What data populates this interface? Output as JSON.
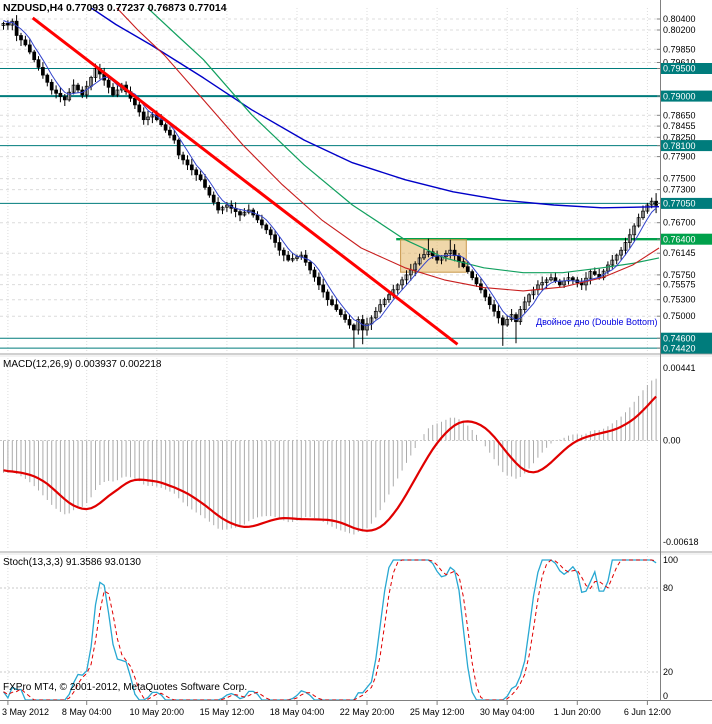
{
  "app": {
    "platform_title": "FXPro MT4",
    "copyright": "FXPro MT4, © 2001-2012, MetaQuotes Software Corp."
  },
  "main_panel": {
    "title": "NZDUSD,H4 0.77093 0.77237 0.76873 0.77014",
    "symbol": "NZDUSD",
    "timeframe": "H4",
    "open": "0.77093",
    "high": "0.77237",
    "low": "0.76873",
    "close": "0.77014",
    "annotation_text": "Двойное дно (Double Bottom)"
  },
  "macd_panel": {
    "title": "MACD(12,26,9) 0.003937 0.002218",
    "indicator": "MACD",
    "params": "12,26,9",
    "main_value": "0.003937",
    "signal_value": "0.002218"
  },
  "stoch_panel": {
    "title": "Stoch(13,3,3) 91.3586 93.0130",
    "indicator": "Stochastic",
    "params": "13,3,3",
    "main_value": "91.3586",
    "signal_value": "93.0130"
  },
  "chart_data": {
    "type": "candlestick",
    "symbol": "NZDUSD",
    "timeframe": "H4",
    "price_axis": {
      "max": 0.806,
      "min": 0.7435,
      "labels": [
        {
          "text": "0.80400",
          "v": 0.804,
          "type": "grid"
        },
        {
          "text": "0.80200",
          "v": 0.802,
          "type": "grid"
        },
        {
          "text": "0.79850",
          "v": 0.7985,
          "type": "grid"
        },
        {
          "text": "0.79610",
          "v": 0.7961,
          "type": "grid"
        },
        {
          "text": "0.79500",
          "v": 0.795,
          "type": "teal"
        },
        {
          "text": "0.79000",
          "v": 0.79,
          "type": "teal"
        },
        {
          "text": "0.78650",
          "v": 0.7865,
          "type": "grid"
        },
        {
          "text": "0.78455",
          "v": 0.78455,
          "type": "grid"
        },
        {
          "text": "0.78250",
          "v": 0.7825,
          "type": "grid"
        },
        {
          "text": "0.78100",
          "v": 0.781,
          "type": "teal"
        },
        {
          "text": "0.77900",
          "v": 0.779,
          "type": "grid"
        },
        {
          "text": "0.77500",
          "v": 0.775,
          "type": "grid"
        },
        {
          "text": "0.77300",
          "v": 0.773,
          "type": "grid"
        },
        {
          "text": "0.77050",
          "v": 0.7705,
          "type": "teal"
        },
        {
          "text": "0.76700",
          "v": 0.767,
          "type": "grid"
        },
        {
          "text": "0.76400",
          "v": 0.764,
          "type": "green"
        },
        {
          "text": "0.76145",
          "v": 0.76145,
          "type": "grid"
        },
        {
          "text": "0.75750",
          "v": 0.7575,
          "type": "grid"
        },
        {
          "text": "0.75575",
          "v": 0.75575,
          "type": "grid"
        },
        {
          "text": "0.75300",
          "v": 0.753,
          "type": "grid"
        },
        {
          "text": "0.75000",
          "v": 0.75,
          "type": "grid"
        },
        {
          "text": "0.74600",
          "v": 0.746,
          "type": "teal"
        },
        {
          "text": "0.74420",
          "v": 0.7442,
          "type": "teal"
        }
      ]
    },
    "macd_axis": {
      "max": 0.00441,
      "min": -0.00618,
      "labels": [
        {
          "text": "0.00441",
          "v": 0.00441
        },
        {
          "text": "0.00",
          "v": 0
        },
        {
          "text": "-0.00618",
          "v": -0.00618
        }
      ]
    },
    "stoch_axis": {
      "labels": [
        {
          "text": "100",
          "v": 100
        },
        {
          "text": "80",
          "v": 80
        },
        {
          "text": "20",
          "v": 20
        },
        {
          "text": "0",
          "v": 0
        }
      ],
      "dashed_levels": [
        80,
        20
      ]
    },
    "x_labels": [
      {
        "text": "3 May 2012",
        "bar": 1
      },
      {
        "text": "8 May 04:00",
        "bar": 19
      },
      {
        "text": "10 May 20:00",
        "bar": 35
      },
      {
        "text": "15 May 12:00",
        "bar": 51
      },
      {
        "text": "18 May 04:00",
        "bar": 67
      },
      {
        "text": "22 May 20:00",
        "bar": 83
      },
      {
        "text": "25 May 12:00",
        "bar": 99
      },
      {
        "text": "30 May 04:00",
        "bar": 115
      },
      {
        "text": "1 Jun 20:00",
        "bar": 131
      },
      {
        "text": "6 Jun 12:00",
        "bar": 147
      }
    ],
    "first_open": 0.8028,
    "warmup_closes": [
      0.8118,
      0.8105,
      0.8112,
      0.8096,
      0.8101,
      0.8088,
      0.8075,
      0.8082,
      0.8068,
      0.8074,
      0.806,
      0.8052,
      0.8058,
      0.8045,
      0.805,
      0.804,
      0.8046,
      0.8036,
      0.8042,
      0.803
    ],
    "closes": [
      0.8032,
      0.8029,
      0.8036,
      0.801,
      0.8002,
      0.7993,
      0.798,
      0.7966,
      0.7952,
      0.7938,
      0.7925,
      0.7911,
      0.7905,
      0.7899,
      0.7893,
      0.7907,
      0.792,
      0.7911,
      0.7902,
      0.7918,
      0.7934,
      0.795,
      0.794,
      0.7929,
      0.7916,
      0.7902,
      0.7911,
      0.792,
      0.7908,
      0.7896,
      0.7884,
      0.7871,
      0.7857,
      0.7862,
      0.7866,
      0.7857,
      0.7848,
      0.7838,
      0.7829,
      0.782,
      0.7793,
      0.7784,
      0.7775,
      0.7766,
      0.7757,
      0.7748,
      0.7734,
      0.772,
      0.7707,
      0.7693,
      0.7698,
      0.7702,
      0.7696,
      0.769,
      0.7684,
      0.7689,
      0.7693,
      0.7684,
      0.7675,
      0.7666,
      0.7657,
      0.7648,
      0.7634,
      0.762,
      0.7611,
      0.7602,
      0.7605,
      0.7608,
      0.7611,
      0.7598,
      0.7584,
      0.7571,
      0.7557,
      0.7544,
      0.753,
      0.7521,
      0.7512,
      0.7503,
      0.7494,
      0.7484,
      0.7475,
      0.7494,
      0.7475,
      0.7486,
      0.7497,
      0.7509,
      0.7521,
      0.753,
      0.7539,
      0.7548,
      0.7557,
      0.7566,
      0.7575,
      0.7584,
      0.7595,
      0.7606,
      0.7612,
      0.7617,
      0.761,
      0.7602,
      0.7608,
      0.7614,
      0.762,
      0.761,
      0.7599,
      0.759,
      0.7581,
      0.757,
      0.7559,
      0.7548,
      0.7535,
      0.7521,
      0.7509,
      0.7497,
      0.7484,
      0.7494,
      0.7503,
      0.749,
      0.7512,
      0.7526,
      0.7539,
      0.7548,
      0.7557,
      0.7561,
      0.7566,
      0.757,
      0.7564,
      0.7557,
      0.7564,
      0.757,
      0.7566,
      0.7561,
      0.7557,
      0.7569,
      0.7581,
      0.7576,
      0.757,
      0.7582,
      0.7593,
      0.7602,
      0.7611,
      0.762,
      0.7634,
      0.7648,
      0.7664,
      0.7679,
      0.7691,
      0.7702,
      0.7709,
      0.77014
    ],
    "current_bar_ohlc": [
      0.77093,
      0.77237,
      0.76873,
      0.77014
    ],
    "high_overrides": {
      "2": 0.8041,
      "21": 0.7959,
      "97": 0.7641,
      "102": 0.7639
    },
    "low_overrides": {
      "80": 0.7443,
      "82": 0.7449,
      "114": 0.7446,
      "117": 0.7451
    },
    "moving_averages": [
      {
        "name": "ma-slow-blue",
        "color": "#0000C8",
        "width": 1.4,
        "points": [
          [
            20,
            0.8062
          ],
          [
            26,
            0.803
          ],
          [
            34,
            0.7993
          ],
          [
            46,
            0.7933
          ],
          [
            57,
            0.7875
          ],
          [
            69,
            0.782
          ],
          [
            80,
            0.7779
          ],
          [
            92,
            0.7748
          ],
          [
            103,
            0.7726
          ],
          [
            114,
            0.7711
          ],
          [
            126,
            0.7702
          ],
          [
            137,
            0.7697
          ],
          [
            150,
            0.7699
          ]
        ]
      },
      {
        "name": "ma-mid-green",
        "color": "#12A05F",
        "width": 1.2,
        "points": [
          [
            33,
            0.8062
          ],
          [
            40,
            0.801
          ],
          [
            46,
            0.7966
          ],
          [
            57,
            0.7866
          ],
          [
            69,
            0.7775
          ],
          [
            80,
            0.7702
          ],
          [
            92,
            0.7639
          ],
          [
            101,
            0.7606
          ],
          [
            110,
            0.7588
          ],
          [
            119,
            0.7579
          ],
          [
            128,
            0.7579
          ],
          [
            137,
            0.7588
          ],
          [
            144,
            0.7596
          ],
          [
            150,
            0.7606
          ]
        ]
      },
      {
        "name": "ma-mid-red",
        "color": "#C81E1E",
        "width": 1.1,
        "points": [
          [
            26,
            0.8062
          ],
          [
            31,
            0.802
          ],
          [
            37,
            0.7975
          ],
          [
            46,
            0.7893
          ],
          [
            55,
            0.7811
          ],
          [
            64,
            0.7739
          ],
          [
            73,
            0.7675
          ],
          [
            82,
            0.7624
          ],
          [
            92,
            0.7588
          ],
          [
            101,
            0.7566
          ],
          [
            110,
            0.7552
          ],
          [
            119,
            0.7546
          ],
          [
            128,
            0.7553
          ],
          [
            137,
            0.757
          ],
          [
            144,
            0.7593
          ],
          [
            150,
            0.7624
          ]
        ]
      }
    ],
    "fast_ma": {
      "period": 5,
      "color": "#3344CC",
      "width": 1
    },
    "trendline": {
      "from_bar": 7,
      "from_price": 0.8042,
      "to_bar": 104,
      "to_price": 0.7449,
      "color": "#FF0000",
      "width": 3
    },
    "hlines": [
      {
        "price": 0.795,
        "color": "#007C7C",
        "width": 1
      },
      {
        "price": 0.79,
        "color": "#007C7C",
        "width": 2
      },
      {
        "price": 0.781,
        "color": "#007C7C",
        "width": 1
      },
      {
        "price": 0.7705,
        "color": "#007C7C",
        "width": 1
      },
      {
        "price": 0.746,
        "color": "#007C7C",
        "width": 1
      },
      {
        "price": 0.7442,
        "color": "#007C7C",
        "width": 1
      }
    ],
    "green_line": {
      "price": 0.764,
      "from_bar": 90,
      "color": "#00A14B",
      "width": 2.4
    },
    "box": {
      "from_bar": 91,
      "to_bar": 106,
      "top": 0.7639,
      "bottom": 0.758,
      "fill": "rgba(225,175,85,0.5)",
      "stroke": "#C89648"
    },
    "annotation": {
      "text": "Двойное дно (Double Bottom)",
      "color": "#0000E0",
      "bar": 122,
      "price": 0.7472
    },
    "macd": {
      "params": [
        12,
        26,
        9
      ],
      "hist_color": "#ABABAB",
      "signal_color": "#E00000",
      "signal_width": 2.2
    },
    "stoch": {
      "params": [
        13,
        3,
        3
      ],
      "main_color": "#28A8D2",
      "signal_color": "#E00000"
    },
    "colors": {
      "grid": "#DCDCDC",
      "axis_border": "#808080",
      "scale_text": "#000000",
      "label_teal_bg": "#007C7C",
      "label_green_bg": "#00A14B",
      "candle_up": "#FFFFFF",
      "candle_down": "#000000",
      "candle_border": "#000000"
    }
  }
}
